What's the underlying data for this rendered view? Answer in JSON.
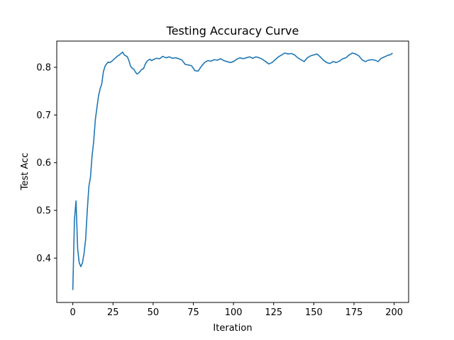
{
  "chart_data": {
    "type": "line",
    "title": "Testing Accuracy Curve",
    "xlabel": "Iteration",
    "ylabel": "Test Acc",
    "xlim": [
      -10,
      209
    ],
    "ylim": [
      0.307,
      0.855
    ],
    "xticks": [
      0,
      25,
      50,
      75,
      100,
      125,
      150,
      175,
      200
    ],
    "xtick_labels": [
      "0",
      "25",
      "50",
      "75",
      "100",
      "125",
      "150",
      "175",
      "200"
    ],
    "yticks": [
      0.4,
      0.5,
      0.6,
      0.7,
      0.8
    ],
    "ytick_labels": [
      "0.4",
      "0.5",
      "0.6",
      "0.7",
      "0.8"
    ],
    "grid": false,
    "line_color": "#1f77b4",
    "series": [
      {
        "x": [
          0,
          1,
          2,
          3,
          4,
          5,
          6,
          7,
          8,
          9,
          10,
          11,
          12,
          13,
          14,
          15,
          16,
          17,
          18,
          19,
          20,
          21,
          22,
          23,
          24,
          25,
          26,
          27,
          28,
          29,
          30,
          31,
          32,
          33,
          34,
          35,
          36,
          37,
          38,
          39,
          40,
          41,
          42,
          43,
          44,
          45,
          46,
          47,
          48,
          49,
          50,
          52,
          54,
          56,
          58,
          60,
          62,
          64,
          66,
          68,
          70,
          72,
          74,
          76,
          78,
          80,
          82,
          84,
          86,
          88,
          90,
          92,
          94,
          96,
          98,
          100,
          102,
          104,
          106,
          108,
          110,
          112,
          114,
          116,
          118,
          120,
          122,
          124,
          126,
          128,
          130,
          132,
          134,
          136,
          138,
          140,
          142,
          144,
          146,
          148,
          150,
          152,
          154,
          156,
          158,
          160,
          162,
          164,
          166,
          168,
          170,
          172,
          174,
          176,
          178,
          180,
          182,
          184,
          186,
          188,
          190,
          192,
          194,
          196,
          198,
          199
        ],
        "y": [
          0.333,
          0.48,
          0.52,
          0.42,
          0.39,
          0.382,
          0.39,
          0.41,
          0.44,
          0.5,
          0.55,
          0.57,
          0.615,
          0.645,
          0.69,
          0.715,
          0.74,
          0.755,
          0.765,
          0.79,
          0.802,
          0.807,
          0.811,
          0.81,
          0.812,
          0.815,
          0.818,
          0.821,
          0.824,
          0.826,
          0.829,
          0.832,
          0.826,
          0.824,
          0.822,
          0.813,
          0.802,
          0.798,
          0.796,
          0.79,
          0.786,
          0.788,
          0.792,
          0.796,
          0.797,
          0.806,
          0.812,
          0.815,
          0.817,
          0.814,
          0.816,
          0.819,
          0.818,
          0.823,
          0.82,
          0.822,
          0.819,
          0.82,
          0.818,
          0.815,
          0.806,
          0.805,
          0.803,
          0.793,
          0.792,
          0.802,
          0.81,
          0.814,
          0.813,
          0.816,
          0.815,
          0.818,
          0.814,
          0.812,
          0.81,
          0.812,
          0.817,
          0.82,
          0.818,
          0.82,
          0.822,
          0.819,
          0.822,
          0.82,
          0.817,
          0.812,
          0.807,
          0.81,
          0.816,
          0.822,
          0.826,
          0.83,
          0.828,
          0.829,
          0.826,
          0.82,
          0.816,
          0.812,
          0.82,
          0.824,
          0.826,
          0.828,
          0.822,
          0.815,
          0.81,
          0.808,
          0.812,
          0.81,
          0.813,
          0.818,
          0.82,
          0.826,
          0.83,
          0.828,
          0.824,
          0.816,
          0.812,
          0.815,
          0.816,
          0.815,
          0.812,
          0.819,
          0.822,
          0.825,
          0.827,
          0.83
        ]
      }
    ]
  }
}
